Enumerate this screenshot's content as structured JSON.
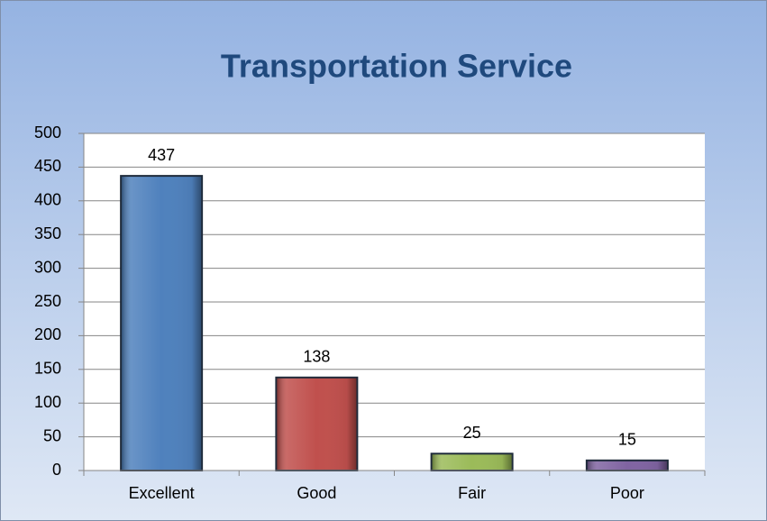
{
  "chart_data": {
    "type": "bar",
    "title": "Transportation Service",
    "categories": [
      "Excellent",
      "Good",
      "Fair",
      "Poor"
    ],
    "values": [
      437,
      138,
      25,
      15
    ],
    "colors": [
      "#4f81bd",
      "#c0504d",
      "#9bbb59",
      "#8064a2"
    ],
    "ylim": [
      0,
      500
    ],
    "yticks": [
      0,
      50,
      100,
      150,
      200,
      250,
      300,
      350,
      400,
      450,
      500
    ],
    "grid": true
  }
}
